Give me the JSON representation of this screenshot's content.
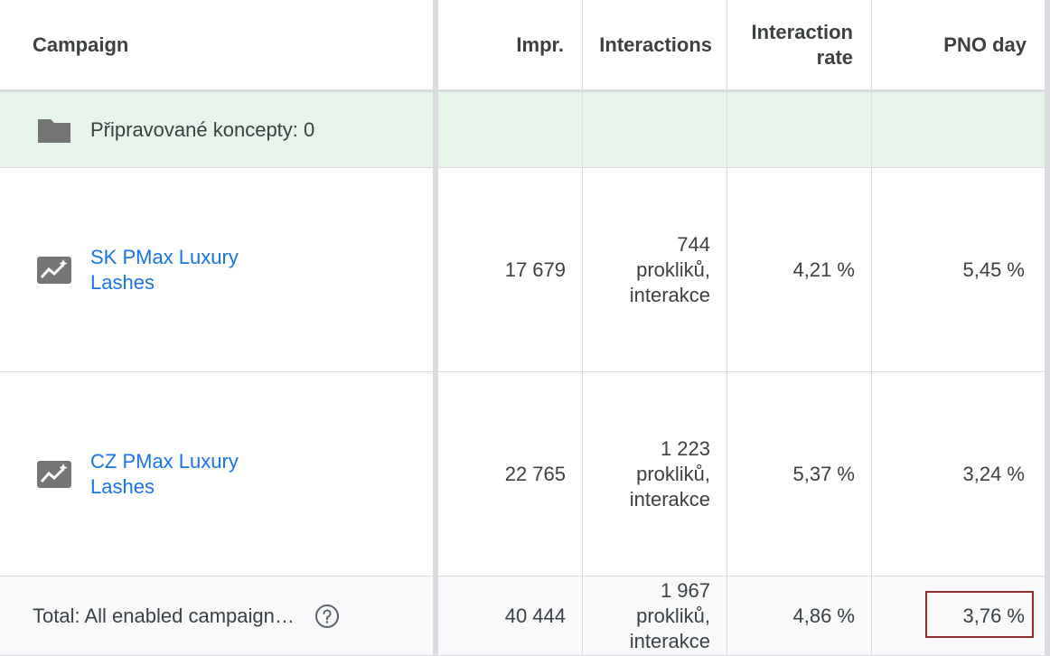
{
  "header": {
    "campaign": "Campaign",
    "impr": "Impr.",
    "interactions": "Interactions",
    "interaction_rate_line1": "Interaction",
    "interaction_rate_line2": "rate",
    "pno_day": "PNO day"
  },
  "draft_row": {
    "icon": "folder-icon",
    "label": "Připravované koncepty: 0"
  },
  "rows": [
    {
      "icon": "pmax-campaign-icon",
      "name_line1": "SK PMax Luxury",
      "name_line2": "Lashes",
      "impr": "17 679",
      "interactions_count": "744",
      "interactions_line2": "prokliků,",
      "interactions_line3": "interakce",
      "interaction_rate": "4,21 %",
      "pno_day": "5,45 %"
    },
    {
      "icon": "pmax-campaign-icon",
      "name_line1": "CZ PMax Luxury",
      "name_line2": "Lashes",
      "impr": "22 765",
      "interactions_count": "1 223",
      "interactions_line2": "prokliků,",
      "interactions_line3": "interakce",
      "interaction_rate": "5,37 %",
      "pno_day": "3,24 %"
    }
  ],
  "total": {
    "label": "Total: All enabled campaign…",
    "help_icon": "help-circle-icon",
    "impr": "40 444",
    "interactions_count": "1 967",
    "interactions_line2": "prokliků,",
    "interactions_line3": "interakce",
    "interaction_rate": "4,86 %",
    "pno_day": "3,76 %"
  },
  "colors": {
    "link": "#1a73e8",
    "draft_row_bg": "#e6f4ea",
    "highlight_border": "#8e2a2a",
    "icon_gray": "#757575"
  }
}
